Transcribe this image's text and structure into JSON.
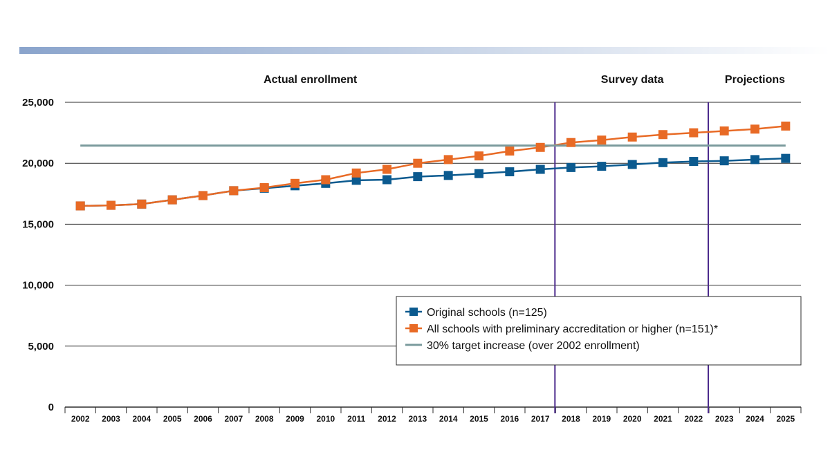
{
  "chart_data": {
    "type": "line",
    "title": "",
    "xlabel": "",
    "ylabel": "",
    "categories": [
      "2002",
      "2003",
      "2004",
      "2005",
      "2006",
      "2007",
      "2008",
      "2009",
      "2010",
      "2011",
      "2012",
      "2013",
      "2014",
      "2015",
      "2016",
      "2017",
      "2018",
      "2019",
      "2020",
      "2021",
      "2022",
      "2023",
      "2024",
      "2025"
    ],
    "ylim": [
      0,
      25000
    ],
    "y_ticks": [
      0,
      5000,
      10000,
      15000,
      20000,
      25000
    ],
    "y_tick_labels": [
      "0",
      "5,000",
      "10,000",
      "15,000",
      "20,000",
      "25,000"
    ],
    "grid": "horizontal",
    "legend_position": "lower-right",
    "sections": [
      {
        "label": "Actual enrollment",
        "from": "2002",
        "to": "2017"
      },
      {
        "label": "Survey data",
        "from": "2018",
        "to": "2022"
      },
      {
        "label": "Projections",
        "from": "2023",
        "to": "2025"
      }
    ],
    "series": [
      {
        "name": "Original schools (n=125)",
        "color": "#0b5a8f",
        "marker": "square",
        "values": [
          16500,
          16550,
          16650,
          17000,
          17350,
          17750,
          17950,
          18150,
          18350,
          18600,
          18650,
          18900,
          19000,
          19150,
          19300,
          19500,
          19650,
          19750,
          19900,
          20050,
          20150,
          20200,
          20300,
          20400
        ]
      },
      {
        "name": "All schools with preliminary accreditation or higher (n=151)*",
        "color": "#e86a25",
        "marker": "square",
        "values": [
          16500,
          16550,
          16650,
          17000,
          17350,
          17750,
          18000,
          18350,
          18650,
          19200,
          19500,
          20000,
          20300,
          20600,
          21000,
          21300,
          21700,
          21900,
          22150,
          22350,
          22500,
          22650,
          22800,
          23050
        ]
      },
      {
        "name": "30% target increase (over 2002 enrollment)",
        "color": "#7a9a9c",
        "marker": "none",
        "constant": 21450
      }
    ]
  }
}
